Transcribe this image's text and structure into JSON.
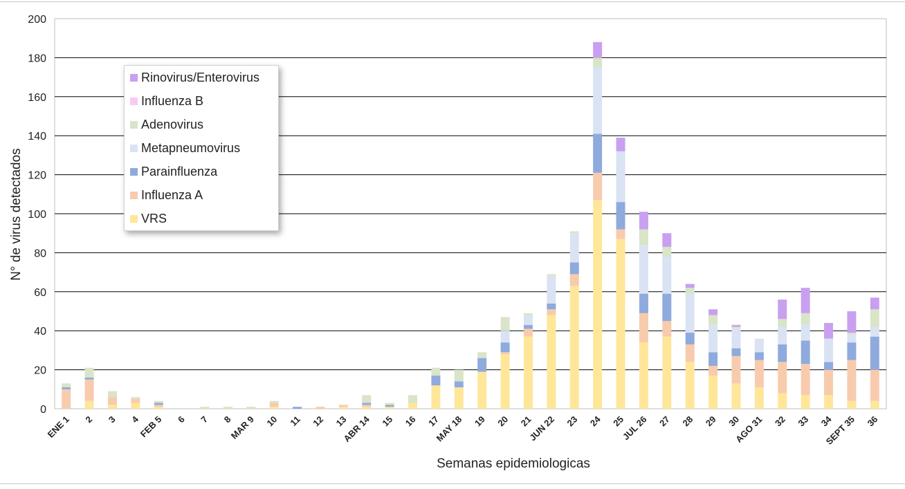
{
  "chart_data": {
    "type": "bar",
    "stacked": true,
    "title": "",
    "xlabel": "Semanas epidemiologicas",
    "ylabel": "N° de virus detectados",
    "ylim": [
      0,
      200
    ],
    "yticks": [
      0,
      20,
      40,
      60,
      80,
      100,
      120,
      140,
      160,
      180,
      200
    ],
    "grid": true,
    "legend_position": "top-left",
    "categories": [
      "ENE 1",
      "2",
      "3",
      "4",
      "FEB 5",
      "6",
      "7",
      "8",
      "MAR 9",
      "10",
      "11",
      "12",
      "13",
      "ABR 14",
      "15",
      "16",
      "17",
      "MAY 18",
      "19",
      "20",
      "21",
      "JUN 22",
      "23",
      "24",
      "25",
      "JUL 26",
      "27",
      "28",
      "29",
      "30",
      "AGO 31",
      "32",
      "33",
      "34",
      "SEPT 35",
      "36"
    ],
    "series": [
      {
        "name": "VRS",
        "color": "#ffe699",
        "values": [
          0,
          4,
          2,
          3,
          1,
          0,
          0,
          0,
          0,
          1,
          0,
          0,
          1,
          1,
          1,
          3,
          12,
          11,
          19,
          28,
          37,
          48,
          63,
          107,
          87,
          34,
          37,
          24,
          17,
          13,
          11,
          8,
          7,
          7,
          4,
          4
        ]
      },
      {
        "name": "Influenza A",
        "color": "#f8cbad",
        "values": [
          10,
          11,
          4,
          2,
          1,
          0,
          0,
          0,
          0,
          2,
          0,
          1,
          1,
          1,
          0,
          0,
          0,
          0,
          0,
          1,
          4,
          3,
          6,
          14,
          5,
          15,
          8,
          9,
          5,
          14,
          14,
          16,
          16,
          13,
          21,
          16
        ]
      },
      {
        "name": "Parainfluenza",
        "color": "#8faadc",
        "values": [
          1,
          1,
          0,
          0,
          1,
          0,
          0,
          0,
          0,
          0,
          1,
          0,
          0,
          1,
          1,
          0,
          5,
          3,
          7,
          5,
          2,
          3,
          6,
          20,
          14,
          10,
          14,
          6,
          7,
          4,
          4,
          9,
          12,
          4,
          9,
          17
        ]
      },
      {
        "name": "Metapneumovirus",
        "color": "#dae3f3",
        "values": [
          0,
          0,
          0,
          0,
          0,
          0,
          0,
          0,
          0,
          0,
          0,
          0,
          0,
          0,
          0,
          0,
          0,
          0,
          0,
          6,
          5,
          14,
          15,
          34,
          26,
          25,
          19,
          20,
          14,
          10,
          7,
          9,
          8,
          12,
          4,
          5
        ]
      },
      {
        "name": "Adenovirus",
        "color": "#d9e4c8",
        "values": [
          2,
          5,
          3,
          1,
          1,
          0,
          1,
          1,
          1,
          1,
          0,
          0,
          0,
          4,
          1,
          4,
          4,
          6,
          3,
          7,
          1,
          1,
          1,
          5,
          0,
          8,
          5,
          3,
          5,
          1,
          0,
          4,
          6,
          0,
          1,
          9
        ]
      },
      {
        "name": "Influenza B",
        "color": "#f9c9f3",
        "values": [
          0,
          0,
          0,
          0,
          0,
          0,
          0,
          0,
          0,
          0,
          0,
          0,
          0,
          0,
          0,
          0,
          0,
          0,
          0,
          0,
          0,
          0,
          0,
          0,
          0,
          0,
          0,
          0,
          0,
          0,
          0,
          0,
          0,
          0,
          0,
          0
        ]
      },
      {
        "name": "Rinovirus/Enterovirus",
        "color": "#c9a0f0",
        "values": [
          0,
          0,
          0,
          0,
          0,
          0,
          0,
          0,
          0,
          0,
          0,
          0,
          0,
          0,
          0,
          0,
          0,
          0,
          0,
          0,
          0,
          0,
          0,
          8,
          7,
          9,
          7,
          2,
          3,
          1,
          0,
          10,
          13,
          8,
          11,
          6
        ]
      }
    ]
  },
  "legend": {
    "items": [
      {
        "label": "Rinovirus/Enterovirus",
        "color": "#c9a0f0"
      },
      {
        "label": "Influenza B",
        "color": "#f9c9f3"
      },
      {
        "label": "Adenovirus",
        "color": "#d9e4c8"
      },
      {
        "label": "Metapneumovirus",
        "color": "#dae3f3"
      },
      {
        "label": "Parainfluenza",
        "color": "#8faadc"
      },
      {
        "label": "Influenza A",
        "color": "#f8cbad"
      },
      {
        "label": "VRS",
        "color": "#ffe699"
      }
    ]
  }
}
